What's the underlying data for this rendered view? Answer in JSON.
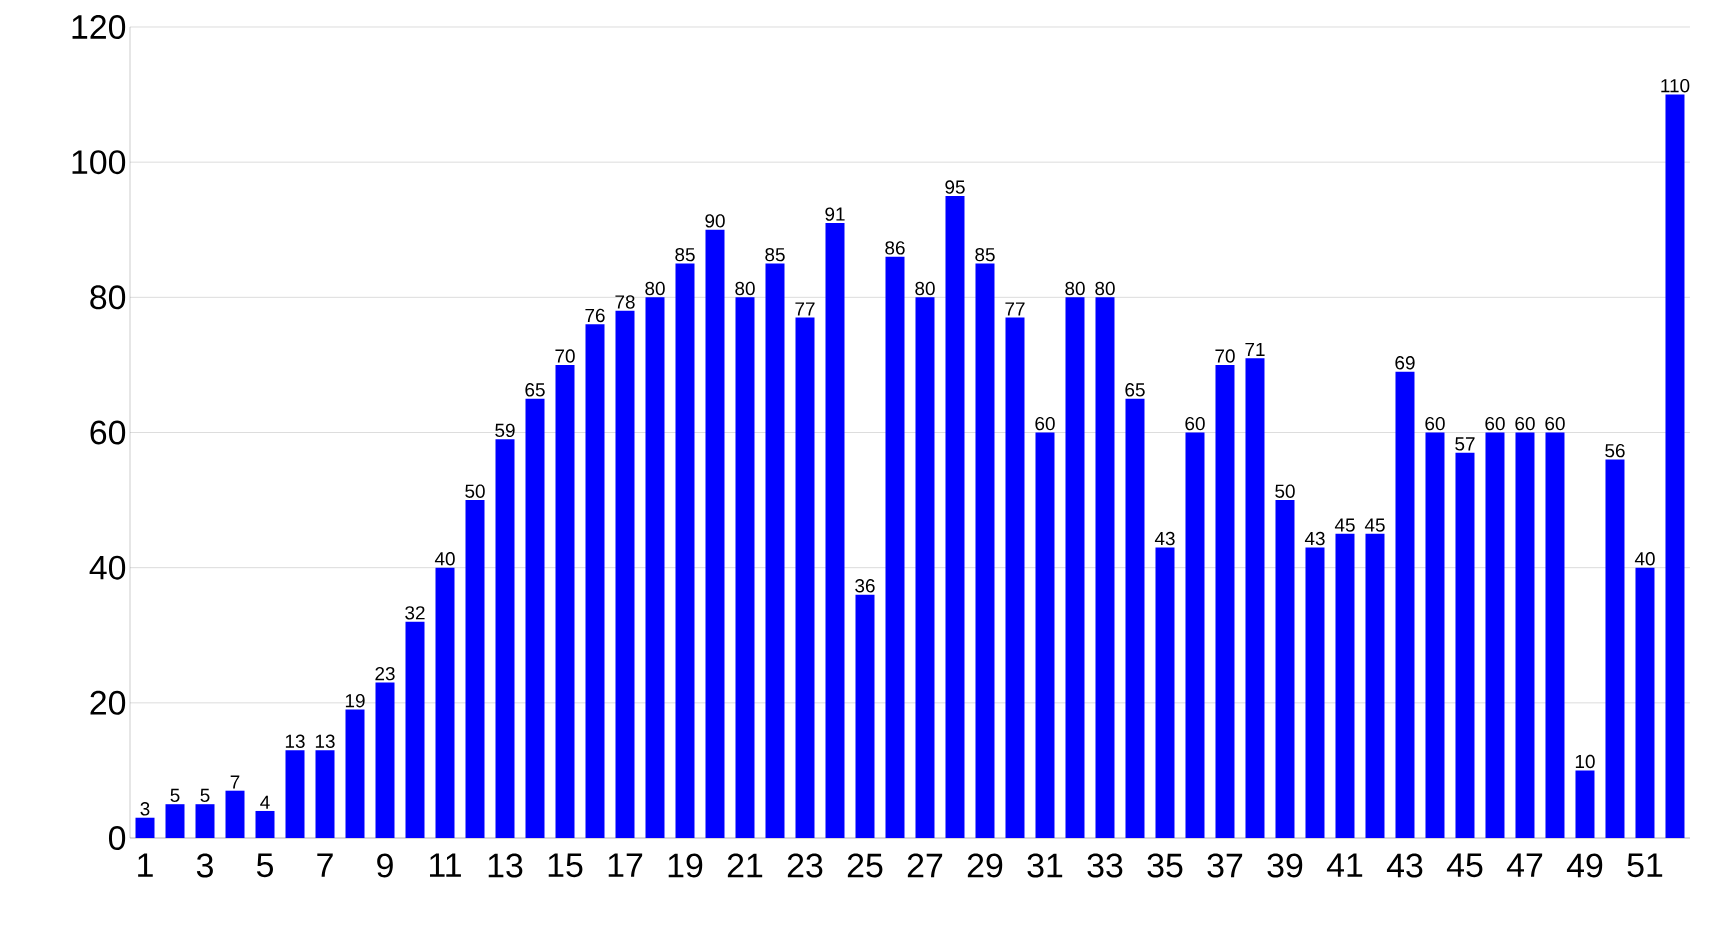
{
  "chart_data": {
    "type": "bar",
    "categories": [
      "1",
      null,
      "3",
      null,
      "5",
      null,
      "7",
      null,
      "9",
      null,
      "11",
      null,
      "13",
      null,
      "15",
      null,
      "17",
      null,
      "19",
      null,
      "21",
      null,
      "23",
      null,
      "25",
      null,
      "27",
      null,
      "29",
      null,
      "31",
      null,
      "33",
      null,
      "35",
      null,
      "37",
      null,
      "39",
      null,
      "41",
      null,
      "43",
      null,
      "45",
      null,
      "47",
      null,
      "49",
      null,
      "51",
      null
    ],
    "values": [
      3,
      5,
      5,
      7,
      4,
      13,
      13,
      19,
      23,
      32,
      40,
      50,
      59,
      65,
      70,
      76,
      78,
      80,
      85,
      90,
      80,
      85,
      77,
      91,
      36,
      86,
      80,
      95,
      85,
      77,
      60,
      80,
      80,
      65,
      43,
      60,
      70,
      71,
      50,
      43,
      45,
      45,
      69,
      60,
      57,
      60,
      60,
      60,
      10,
      56,
      40,
      110
    ],
    "color": "#0000ff",
    "ylim": [
      0,
      120
    ],
    "yticks": [
      0,
      20,
      40,
      60,
      80,
      100,
      120
    ],
    "grid": "y",
    "data_labels": true
  }
}
